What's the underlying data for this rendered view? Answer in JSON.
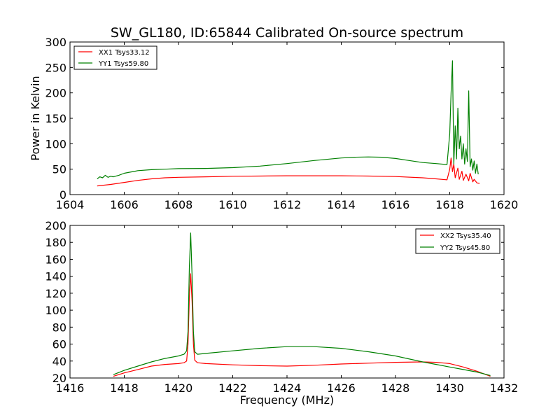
{
  "chart_data": [
    {
      "type": "line",
      "title": "SW_GL180, ID:65844 Calibrated On-source spectrum",
      "xlabel": "",
      "ylabel": "Power in Kelvin",
      "xlim": [
        1604,
        1620
      ],
      "ylim": [
        0,
        300
      ],
      "xticks": [
        1604,
        1606,
        1608,
        1610,
        1612,
        1614,
        1616,
        1618,
        1620
      ],
      "yticks": [
        0,
        50,
        100,
        150,
        200,
        250,
        300
      ],
      "legend_position": "top-left",
      "series": [
        {
          "name": "XX1 Tsys33.12",
          "color": "#ff0000",
          "x": [
            1605.0,
            1605.5,
            1606.0,
            1606.5,
            1607.0,
            1607.5,
            1608.0,
            1609.0,
            1610.0,
            1611.0,
            1612.0,
            1613.0,
            1614.0,
            1615.0,
            1616.0,
            1617.0,
            1617.5,
            1617.9,
            1618.0,
            1618.05,
            1618.1,
            1618.15,
            1618.2,
            1618.3,
            1618.35,
            1618.45,
            1618.5,
            1618.6,
            1618.7,
            1618.75,
            1618.85,
            1618.9,
            1619.0,
            1619.1
          ],
          "y": [
            17,
            20,
            24,
            28,
            31,
            33,
            34,
            35,
            36,
            36.5,
            37,
            37,
            37,
            36.5,
            35.5,
            33,
            31,
            29,
            50,
            72,
            45,
            60,
            33,
            52,
            30,
            46,
            28,
            40,
            27,
            42,
            25,
            30,
            23,
            22
          ]
        },
        {
          "name": "YY1 Tsys59.80",
          "color": "#008000",
          "x": [
            1605.0,
            1605.1,
            1605.2,
            1605.3,
            1605.4,
            1605.5,
            1605.6,
            1605.8,
            1606.0,
            1606.2,
            1606.4,
            1606.5,
            1607.0,
            1607.5,
            1608.0,
            1609.0,
            1610.0,
            1611.0,
            1612.0,
            1613.0,
            1614.0,
            1614.5,
            1615.0,
            1615.5,
            1616.0,
            1616.5,
            1617.0,
            1617.5,
            1617.9,
            1618.0,
            1618.05,
            1618.1,
            1618.15,
            1618.2,
            1618.25,
            1618.3,
            1618.35,
            1618.4,
            1618.45,
            1618.5,
            1618.55,
            1618.6,
            1618.65,
            1618.7,
            1618.75,
            1618.8,
            1618.85,
            1618.9,
            1618.95,
            1619.0,
            1619.05
          ],
          "y": [
            31,
            35,
            33,
            38,
            34,
            36,
            35,
            38,
            42,
            44,
            46,
            47,
            49,
            50,
            51,
            51.5,
            53,
            56,
            61,
            67,
            72,
            73.5,
            74,
            73.5,
            71,
            67,
            63,
            61,
            59,
            120,
            200,
            263,
            60,
            135,
            70,
            170,
            90,
            115,
            70,
            100,
            60,
            90,
            65,
            204,
            55,
            70,
            48,
            66,
            42,
            60,
            40
          ]
        }
      ]
    },
    {
      "type": "line",
      "title": "",
      "xlabel": "Frequency (MHz)",
      "ylabel": "",
      "xlim": [
        1416,
        1432
      ],
      "ylim": [
        20,
        200
      ],
      "xticks": [
        1416,
        1418,
        1420,
        1422,
        1424,
        1426,
        1428,
        1430,
        1432
      ],
      "yticks": [
        20,
        40,
        60,
        80,
        100,
        120,
        140,
        160,
        180,
        200
      ],
      "legend_position": "top-right",
      "series": [
        {
          "name": "XX2 Tsys35.40",
          "color": "#ff0000",
          "x": [
            1417.6,
            1418.0,
            1418.5,
            1419.0,
            1419.5,
            1420.0,
            1420.2,
            1420.3,
            1420.35,
            1420.4,
            1420.45,
            1420.5,
            1420.55,
            1420.6,
            1420.7,
            1421.0,
            1422.0,
            1423.0,
            1424.0,
            1425.0,
            1426.0,
            1427.0,
            1428.0,
            1429.0,
            1429.5,
            1430.0,
            1430.5,
            1431.0,
            1431.5
          ],
          "y": [
            22,
            26,
            30,
            34,
            36,
            37,
            38,
            40,
            60,
            115,
            143,
            110,
            60,
            41,
            38,
            37,
            35.5,
            34.5,
            34,
            35,
            36.5,
            37.5,
            38.5,
            39,
            38.5,
            37,
            33,
            28,
            22
          ]
        },
        {
          "name": "YY2 Tsys45.80",
          "color": "#008000",
          "x": [
            1417.6,
            1418.0,
            1418.5,
            1419.0,
            1419.5,
            1420.0,
            1420.2,
            1420.3,
            1420.35,
            1420.4,
            1420.45,
            1420.5,
            1420.55,
            1420.6,
            1420.7,
            1421.0,
            1422.0,
            1423.0,
            1424.0,
            1425.0,
            1426.0,
            1427.0,
            1428.0,
            1429.0,
            1429.5,
            1430.0,
            1430.5,
            1431.0,
            1431.5
          ],
          "y": [
            24,
            29,
            34,
            39,
            43,
            46,
            48,
            52,
            75,
            150,
            191,
            140,
            75,
            51,
            48,
            49,
            52,
            55,
            57,
            57,
            55,
            51,
            46,
            39,
            36,
            33,
            30,
            27,
            23
          ]
        }
      ]
    }
  ]
}
